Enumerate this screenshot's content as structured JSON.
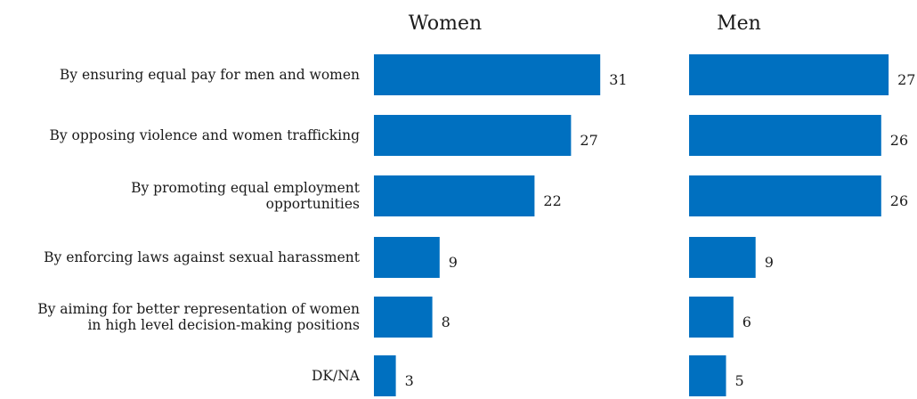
{
  "chart_data": {
    "type": "bar",
    "orientation": "horizontal",
    "title": "",
    "categories": [
      [
        "By ensuring equal pay for men and women"
      ],
      [
        "By opposing violence and women trafficking"
      ],
      [
        "By promoting equal employment",
        "opportunities"
      ],
      [
        "By enforcing laws against sexual harassment"
      ],
      [
        "By aiming for better representation of women",
        "in high level decision-making positions"
      ],
      [
        "DK/NA"
      ]
    ],
    "series": [
      {
        "name": "Women",
        "values": [
          31,
          27,
          22,
          9,
          8,
          3
        ]
      },
      {
        "name": "Men",
        "values": [
          27,
          26,
          26,
          9,
          6,
          5
        ]
      }
    ],
    "grid": false,
    "legend": "none",
    "bar_color": "#0070c0"
  }
}
